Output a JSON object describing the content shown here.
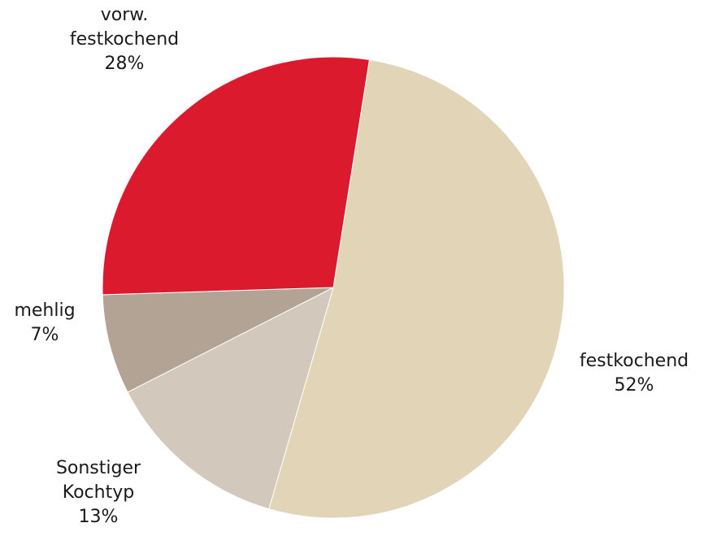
{
  "chart_data": {
    "type": "pie",
    "start_angle_deg": -81,
    "direction": "clockwise",
    "slices": [
      {
        "label_lines": [
          "festkochend"
        ],
        "value": 52,
        "value_text": "52%",
        "color": "#E2D4B7"
      },
      {
        "label_lines": [
          "Sonstiger",
          "Kochtyp"
        ],
        "value": 13,
        "value_text": "13%",
        "color": "#D2C8BC"
      },
      {
        "label_lines": [
          "mehlig"
        ],
        "value": 7,
        "value_text": "7%",
        "color": "#B3A394"
      },
      {
        "label_lines": [
          "vorw.",
          "festkochend"
        ],
        "value": 28,
        "value_text": "28%",
        "color": "#DC1A2E"
      }
    ]
  }
}
